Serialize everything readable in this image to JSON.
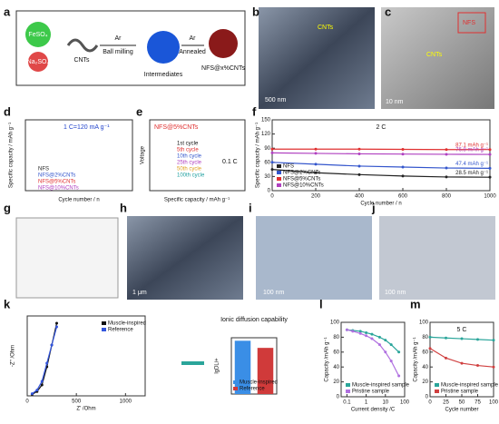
{
  "panel_labels": [
    "a",
    "b",
    "c",
    "d",
    "e",
    "f",
    "g",
    "h",
    "i",
    "j",
    "k",
    "l",
    "m"
  ],
  "a": {
    "feso4": "FeSO₄",
    "na2so4": "Na₂SO₄",
    "cnts": "CNTs",
    "ar1": "Ar",
    "step1": "Ball milling",
    "ar2": "Ar",
    "step2": "Annealed",
    "intermediates": "Intermediates",
    "product": "NFS@x%CNTs"
  },
  "b": {
    "label": "CNTs",
    "scale": "500 nm"
  },
  "c": {
    "nfs": "NFS",
    "cnts": "CNTs",
    "scale": "10 nm"
  },
  "d": {
    "note": "1 C=120 mA g⁻¹",
    "y_label": "Specific capacity / mAh g⁻¹",
    "x_label": "Cycle number / n",
    "legend": [
      "NFS",
      "NFS@2%CNTs",
      "NFS@5%CNTs",
      "NFS@10%CNTs"
    ]
  },
  "e": {
    "sample": "NFS@5%CNTs",
    "rate": "0.1 C",
    "y_label": "Voltage",
    "x_label": "Specific capacity / mAh g⁻¹",
    "legend": [
      "1st cycle",
      "5th cycle",
      "10th cycle",
      "25th cycle",
      "50th cycle",
      "100th cycle"
    ]
  },
  "h": {
    "scale": "1 μm"
  },
  "i": {
    "scale": "100 nm"
  },
  "j": {
    "scale": "100 nm"
  },
  "k": {
    "bar_title": "Ionic diffusion capability"
  },
  "charts": {
    "f": {
      "type": "line",
      "note": "2 C",
      "x_label": "Cycle number / n",
      "y_label": "Specific capacity / mAh g⁻¹",
      "x": [
        0,
        200,
        400,
        600,
        800,
        1000
      ],
      "xlim": [
        0,
        1000
      ],
      "xticks": [
        0,
        200,
        400,
        600,
        800,
        1000
      ],
      "ylim": [
        0,
        150
      ],
      "yticks": [
        0,
        30,
        60,
        90,
        120,
        150
      ],
      "legend": "lower left",
      "series": [
        {
          "name": "NFS",
          "color": "#222222",
          "values": [
            45,
            38,
            34,
            31,
            29,
            28.5
          ],
          "end_label": "28.5 mAh g⁻¹"
        },
        {
          "name": "NFS@2%CNTs",
          "color": "#3355cc",
          "values": [
            60,
            56,
            52,
            50,
            48,
            47.4
          ],
          "end_label": "47.4 mAh g⁻¹"
        },
        {
          "name": "NFS@5%CNTs",
          "color": "#e03030",
          "values": [
            88,
            88,
            88,
            87.5,
            87,
            87.1
          ],
          "end_label": "87.1 mAh g⁻¹"
        },
        {
          "name": "NFS@10%CNTs",
          "color": "#b040c0",
          "values": [
            80,
            79,
            78,
            77.5,
            77,
            76.8
          ],
          "end_label": "76.8 mAh g⁻¹"
        }
      ]
    },
    "l": {
      "type": "line",
      "xscale": "log",
      "x_label": "Current density /C",
      "y_label": "Capacity /mAh g⁻¹",
      "x": [
        0.1,
        0.2,
        0.5,
        1,
        2,
        5,
        10,
        20,
        50
      ],
      "xlim": [
        0.05,
        100
      ],
      "xticks": [
        0.1,
        1,
        10,
        100
      ],
      "ylim": [
        0,
        100
      ],
      "yticks": [
        0,
        20,
        40,
        60,
        80,
        100
      ],
      "legend": "lower left",
      "series": [
        {
          "name": "Muscle-inspired sample",
          "color": "#2aa59a",
          "values": [
            90,
            89,
            88,
            86,
            84,
            80,
            76,
            70,
            60
          ]
        },
        {
          "name": "Pristine sample",
          "color": "#b070e0",
          "values": [
            90,
            88,
            85,
            82,
            78,
            70,
            60,
            48,
            28
          ]
        }
      ]
    },
    "m": {
      "type": "line",
      "note": "5 C",
      "x_label": "Cycle number",
      "y_label": "Capacity /mAh g⁻¹",
      "x": [
        0,
        25,
        50,
        75,
        100
      ],
      "xlim": [
        0,
        100
      ],
      "xticks": [
        0,
        25,
        50,
        75,
        100
      ],
      "ylim": [
        0,
        100
      ],
      "yticks": [
        0,
        20,
        40,
        60,
        80,
        100
      ],
      "legend": "lower left",
      "series": [
        {
          "name": "Muscle-inspired sample",
          "color": "#2aa59a",
          "values": [
            80,
            79,
            78,
            77,
            76
          ]
        },
        {
          "name": "Pristine sample",
          "color": "#d04040",
          "values": [
            65,
            52,
            45,
            42,
            40
          ]
        }
      ]
    },
    "kn": {
      "type": "line",
      "x_label": "Z' /Ohm",
      "y_label": "-Z'' /Ohm",
      "xlim": [
        0,
        1200
      ],
      "xticks": [
        0,
        500,
        1000
      ],
      "ylim": [
        0,
        1100
      ],
      "legend": "upper right",
      "x": [
        50,
        100,
        150,
        200,
        250,
        300
      ],
      "series": [
        {
          "name": "Muscle-inspired",
          "color": "#111111",
          "values": [
            20,
            60,
            150,
            400,
            700,
            1000
          ]
        },
        {
          "name": "Reference",
          "color": "#3355dd",
          "values": [
            30,
            80,
            200,
            450,
            700,
            950
          ]
        }
      ]
    },
    "kb": {
      "type": "bar",
      "y_label": "lgDLi+",
      "ylim": [
        0,
        15
      ],
      "legend": "lower right",
      "series": [
        {
          "name": "Muscle-inspired",
          "color": "#3a8ee6",
          "values": [
            14.2
          ]
        },
        {
          "name": "Reference",
          "color": "#d03a3a",
          "values": [
            12.3
          ]
        }
      ]
    }
  }
}
